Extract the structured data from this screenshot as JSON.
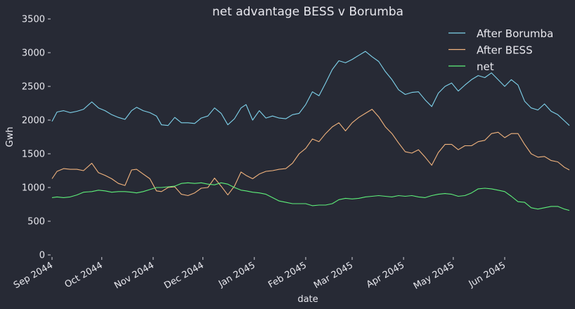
{
  "chart_data": {
    "type": "line",
    "title": "net advantage BESS v Borumba",
    "xlabel": "date",
    "ylabel": "Gwh",
    "ylim": [
      0,
      3500
    ],
    "yticks": [
      0,
      500,
      1000,
      1500,
      2000,
      2500,
      3000,
      3500
    ],
    "xlim": [
      "2044-09-01",
      "2045-07-10"
    ],
    "xticks": [
      {
        "date": "2044-09-01",
        "label": "Sep 2044"
      },
      {
        "date": "2044-10-01",
        "label": "Oct 2044"
      },
      {
        "date": "2044-11-01",
        "label": "Nov 2044"
      },
      {
        "date": "2044-12-01",
        "label": "Dec 2044"
      },
      {
        "date": "2045-01-01",
        "label": "Jan 2045"
      },
      {
        "date": "2045-02-01",
        "label": "Feb 2045"
      },
      {
        "date": "2045-03-01",
        "label": "Mar 2045"
      },
      {
        "date": "2045-04-01",
        "label": "Apr 2045"
      },
      {
        "date": "2045-05-01",
        "label": "May 2045"
      },
      {
        "date": "2045-06-01",
        "label": "Jun 2045"
      }
    ],
    "grid": false,
    "legend": "top-right",
    "series": [
      {
        "name": "After Borumba",
        "color": "#7fd3ec",
        "points": [
          [
            "2044-09-01",
            1980
          ],
          [
            "2044-09-04",
            2120
          ],
          [
            "2044-09-08",
            2140
          ],
          [
            "2044-09-12",
            2110
          ],
          [
            "2044-09-16",
            2130
          ],
          [
            "2044-09-20",
            2160
          ],
          [
            "2044-09-25",
            2270
          ],
          [
            "2044-09-29",
            2180
          ],
          [
            "2044-10-03",
            2140
          ],
          [
            "2044-10-07",
            2080
          ],
          [
            "2044-10-11",
            2040
          ],
          [
            "2044-10-15",
            2010
          ],
          [
            "2044-10-19",
            2140
          ],
          [
            "2044-10-22",
            2190
          ],
          [
            "2044-10-26",
            2140
          ],
          [
            "2044-10-30",
            2110
          ],
          [
            "2044-11-03",
            2060
          ],
          [
            "2044-11-06",
            1930
          ],
          [
            "2044-11-10",
            1920
          ],
          [
            "2044-11-14",
            2040
          ],
          [
            "2044-11-18",
            1960
          ],
          [
            "2044-11-22",
            1960
          ],
          [
            "2044-11-26",
            1950
          ],
          [
            "2044-11-30",
            2030
          ],
          [
            "2044-12-04",
            2060
          ],
          [
            "2044-12-08",
            2180
          ],
          [
            "2044-12-12",
            2100
          ],
          [
            "2044-12-16",
            1930
          ],
          [
            "2044-12-20",
            2020
          ],
          [
            "2044-12-24",
            2180
          ],
          [
            "2044-12-27",
            2230
          ],
          [
            "2044-12-31",
            2000
          ],
          [
            "2045-01-04",
            2140
          ],
          [
            "2045-01-08",
            2030
          ],
          [
            "2045-01-12",
            2060
          ],
          [
            "2045-01-16",
            2030
          ],
          [
            "2045-01-20",
            2020
          ],
          [
            "2045-01-24",
            2080
          ],
          [
            "2045-01-28",
            2100
          ],
          [
            "2045-02-01",
            2230
          ],
          [
            "2045-02-05",
            2420
          ],
          [
            "2045-02-09",
            2360
          ],
          [
            "2045-02-13",
            2550
          ],
          [
            "2045-02-17",
            2750
          ],
          [
            "2045-02-21",
            2880
          ],
          [
            "2045-02-25",
            2850
          ],
          [
            "2045-03-01",
            2900
          ],
          [
            "2045-03-05",
            2960
          ],
          [
            "2045-03-09",
            3020
          ],
          [
            "2045-03-13",
            2940
          ],
          [
            "2045-03-17",
            2870
          ],
          [
            "2045-03-21",
            2720
          ],
          [
            "2045-03-25",
            2600
          ],
          [
            "2045-03-29",
            2450
          ],
          [
            "2045-04-02",
            2380
          ],
          [
            "2045-04-06",
            2410
          ],
          [
            "2045-04-10",
            2420
          ],
          [
            "2045-04-14",
            2300
          ],
          [
            "2045-04-18",
            2200
          ],
          [
            "2045-04-22",
            2400
          ],
          [
            "2045-04-26",
            2500
          ],
          [
            "2045-04-30",
            2550
          ],
          [
            "2045-05-04",
            2430
          ],
          [
            "2045-05-08",
            2520
          ],
          [
            "2045-05-12",
            2600
          ],
          [
            "2045-05-16",
            2660
          ],
          [
            "2045-05-20",
            2630
          ],
          [
            "2045-05-24",
            2700
          ],
          [
            "2045-05-28",
            2600
          ],
          [
            "2045-06-01",
            2500
          ],
          [
            "2045-06-05",
            2600
          ],
          [
            "2045-06-09",
            2520
          ],
          [
            "2045-06-13",
            2280
          ],
          [
            "2045-06-17",
            2180
          ],
          [
            "2045-06-21",
            2150
          ],
          [
            "2045-06-25",
            2240
          ],
          [
            "2045-06-29",
            2130
          ],
          [
            "2045-07-03",
            2080
          ],
          [
            "2045-07-07",
            1990
          ],
          [
            "2045-07-10",
            1920
          ]
        ]
      },
      {
        "name": "After BESS",
        "color": "#f2b47e",
        "points": [
          [
            "2044-09-01",
            1130
          ],
          [
            "2044-09-04",
            1240
          ],
          [
            "2044-09-08",
            1280
          ],
          [
            "2044-09-12",
            1270
          ],
          [
            "2044-09-16",
            1270
          ],
          [
            "2044-09-20",
            1250
          ],
          [
            "2044-09-25",
            1360
          ],
          [
            "2044-09-29",
            1220
          ],
          [
            "2044-10-03",
            1180
          ],
          [
            "2044-10-07",
            1130
          ],
          [
            "2044-10-11",
            1060
          ],
          [
            "2044-10-15",
            1030
          ],
          [
            "2044-10-19",
            1260
          ],
          [
            "2044-10-22",
            1270
          ],
          [
            "2044-10-26",
            1200
          ],
          [
            "2044-10-30",
            1130
          ],
          [
            "2044-11-03",
            950
          ],
          [
            "2044-11-06",
            940
          ],
          [
            "2044-11-10",
            1000
          ],
          [
            "2044-11-14",
            1010
          ],
          [
            "2044-11-18",
            900
          ],
          [
            "2044-11-22",
            880
          ],
          [
            "2044-11-26",
            920
          ],
          [
            "2044-11-30",
            990
          ],
          [
            "2044-12-04",
            1000
          ],
          [
            "2044-12-08",
            1140
          ],
          [
            "2044-12-12",
            1020
          ],
          [
            "2044-12-16",
            890
          ],
          [
            "2044-12-20",
            1020
          ],
          [
            "2044-12-24",
            1230
          ],
          [
            "2044-12-27",
            1180
          ],
          [
            "2044-12-31",
            1130
          ],
          [
            "2045-01-04",
            1200
          ],
          [
            "2045-01-08",
            1240
          ],
          [
            "2045-01-12",
            1250
          ],
          [
            "2045-01-16",
            1270
          ],
          [
            "2045-01-20",
            1280
          ],
          [
            "2045-01-24",
            1360
          ],
          [
            "2045-01-28",
            1500
          ],
          [
            "2045-02-01",
            1580
          ],
          [
            "2045-02-05",
            1720
          ],
          [
            "2045-02-09",
            1680
          ],
          [
            "2045-02-13",
            1800
          ],
          [
            "2045-02-17",
            1900
          ],
          [
            "2045-02-21",
            1960
          ],
          [
            "2045-02-25",
            1840
          ],
          [
            "2045-03-01",
            1960
          ],
          [
            "2045-03-05",
            2040
          ],
          [
            "2045-03-09",
            2100
          ],
          [
            "2045-03-13",
            2160
          ],
          [
            "2045-03-17",
            2050
          ],
          [
            "2045-03-21",
            1900
          ],
          [
            "2045-03-25",
            1800
          ],
          [
            "2045-03-29",
            1660
          ],
          [
            "2045-04-02",
            1530
          ],
          [
            "2045-04-06",
            1510
          ],
          [
            "2045-04-10",
            1560
          ],
          [
            "2045-04-14",
            1450
          ],
          [
            "2045-04-18",
            1330
          ],
          [
            "2045-04-22",
            1520
          ],
          [
            "2045-04-26",
            1640
          ],
          [
            "2045-04-30",
            1640
          ],
          [
            "2045-05-04",
            1560
          ],
          [
            "2045-05-08",
            1620
          ],
          [
            "2045-05-12",
            1620
          ],
          [
            "2045-05-16",
            1680
          ],
          [
            "2045-05-20",
            1700
          ],
          [
            "2045-05-24",
            1800
          ],
          [
            "2045-05-28",
            1820
          ],
          [
            "2045-06-01",
            1740
          ],
          [
            "2045-06-05",
            1800
          ],
          [
            "2045-06-09",
            1800
          ],
          [
            "2045-06-13",
            1640
          ],
          [
            "2045-06-17",
            1500
          ],
          [
            "2045-06-21",
            1450
          ],
          [
            "2045-06-25",
            1460
          ],
          [
            "2045-06-29",
            1400
          ],
          [
            "2045-07-03",
            1380
          ],
          [
            "2045-07-07",
            1300
          ],
          [
            "2045-07-10",
            1260
          ]
        ]
      },
      {
        "name": "net",
        "color": "#5ef07a",
        "points": [
          [
            "2044-09-01",
            850
          ],
          [
            "2044-09-04",
            860
          ],
          [
            "2044-09-08",
            850
          ],
          [
            "2044-09-12",
            860
          ],
          [
            "2044-09-16",
            890
          ],
          [
            "2044-09-20",
            930
          ],
          [
            "2044-09-25",
            940
          ],
          [
            "2044-09-29",
            960
          ],
          [
            "2044-10-03",
            950
          ],
          [
            "2044-10-07",
            930
          ],
          [
            "2044-10-11",
            940
          ],
          [
            "2044-10-15",
            940
          ],
          [
            "2044-10-19",
            930
          ],
          [
            "2044-10-22",
            920
          ],
          [
            "2044-10-26",
            940
          ],
          [
            "2044-10-30",
            970
          ],
          [
            "2044-11-03",
            1000
          ],
          [
            "2044-11-06",
            1000
          ],
          [
            "2044-11-10",
            1010
          ],
          [
            "2044-11-14",
            1020
          ],
          [
            "2044-11-18",
            1060
          ],
          [
            "2044-11-22",
            1070
          ],
          [
            "2044-11-26",
            1060
          ],
          [
            "2044-11-30",
            1070
          ],
          [
            "2044-12-04",
            1050
          ],
          [
            "2044-12-08",
            1040
          ],
          [
            "2044-12-12",
            1070
          ],
          [
            "2044-12-16",
            1050
          ],
          [
            "2044-12-20",
            1000
          ],
          [
            "2044-12-24",
            960
          ],
          [
            "2044-12-27",
            950
          ],
          [
            "2044-12-31",
            930
          ],
          [
            "2045-01-04",
            920
          ],
          [
            "2045-01-08",
            900
          ],
          [
            "2045-01-12",
            850
          ],
          [
            "2045-01-16",
            800
          ],
          [
            "2045-01-20",
            780
          ],
          [
            "2045-01-24",
            760
          ],
          [
            "2045-01-28",
            760
          ],
          [
            "2045-02-01",
            760
          ],
          [
            "2045-02-05",
            730
          ],
          [
            "2045-02-09",
            740
          ],
          [
            "2045-02-13",
            740
          ],
          [
            "2045-02-17",
            760
          ],
          [
            "2045-02-21",
            820
          ],
          [
            "2045-02-25",
            840
          ],
          [
            "2045-03-01",
            830
          ],
          [
            "2045-03-05",
            840
          ],
          [
            "2045-03-09",
            860
          ],
          [
            "2045-03-13",
            870
          ],
          [
            "2045-03-17",
            880
          ],
          [
            "2045-03-21",
            870
          ],
          [
            "2045-03-25",
            860
          ],
          [
            "2045-03-29",
            880
          ],
          [
            "2045-04-02",
            870
          ],
          [
            "2045-04-06",
            880
          ],
          [
            "2045-04-10",
            860
          ],
          [
            "2045-04-14",
            850
          ],
          [
            "2045-04-18",
            880
          ],
          [
            "2045-04-22",
            900
          ],
          [
            "2045-04-26",
            910
          ],
          [
            "2045-04-30",
            900
          ],
          [
            "2045-05-04",
            870
          ],
          [
            "2045-05-08",
            880
          ],
          [
            "2045-05-12",
            920
          ],
          [
            "2045-05-16",
            980
          ],
          [
            "2045-05-20",
            990
          ],
          [
            "2045-05-24",
            980
          ],
          [
            "2045-05-28",
            960
          ],
          [
            "2045-06-01",
            940
          ],
          [
            "2045-06-05",
            870
          ],
          [
            "2045-06-09",
            790
          ],
          [
            "2045-06-13",
            780
          ],
          [
            "2045-06-17",
            700
          ],
          [
            "2045-06-21",
            680
          ],
          [
            "2045-06-25",
            700
          ],
          [
            "2045-06-29",
            720
          ],
          [
            "2045-07-03",
            720
          ],
          [
            "2045-07-07",
            680
          ],
          [
            "2045-07-10",
            660
          ]
        ]
      }
    ]
  }
}
